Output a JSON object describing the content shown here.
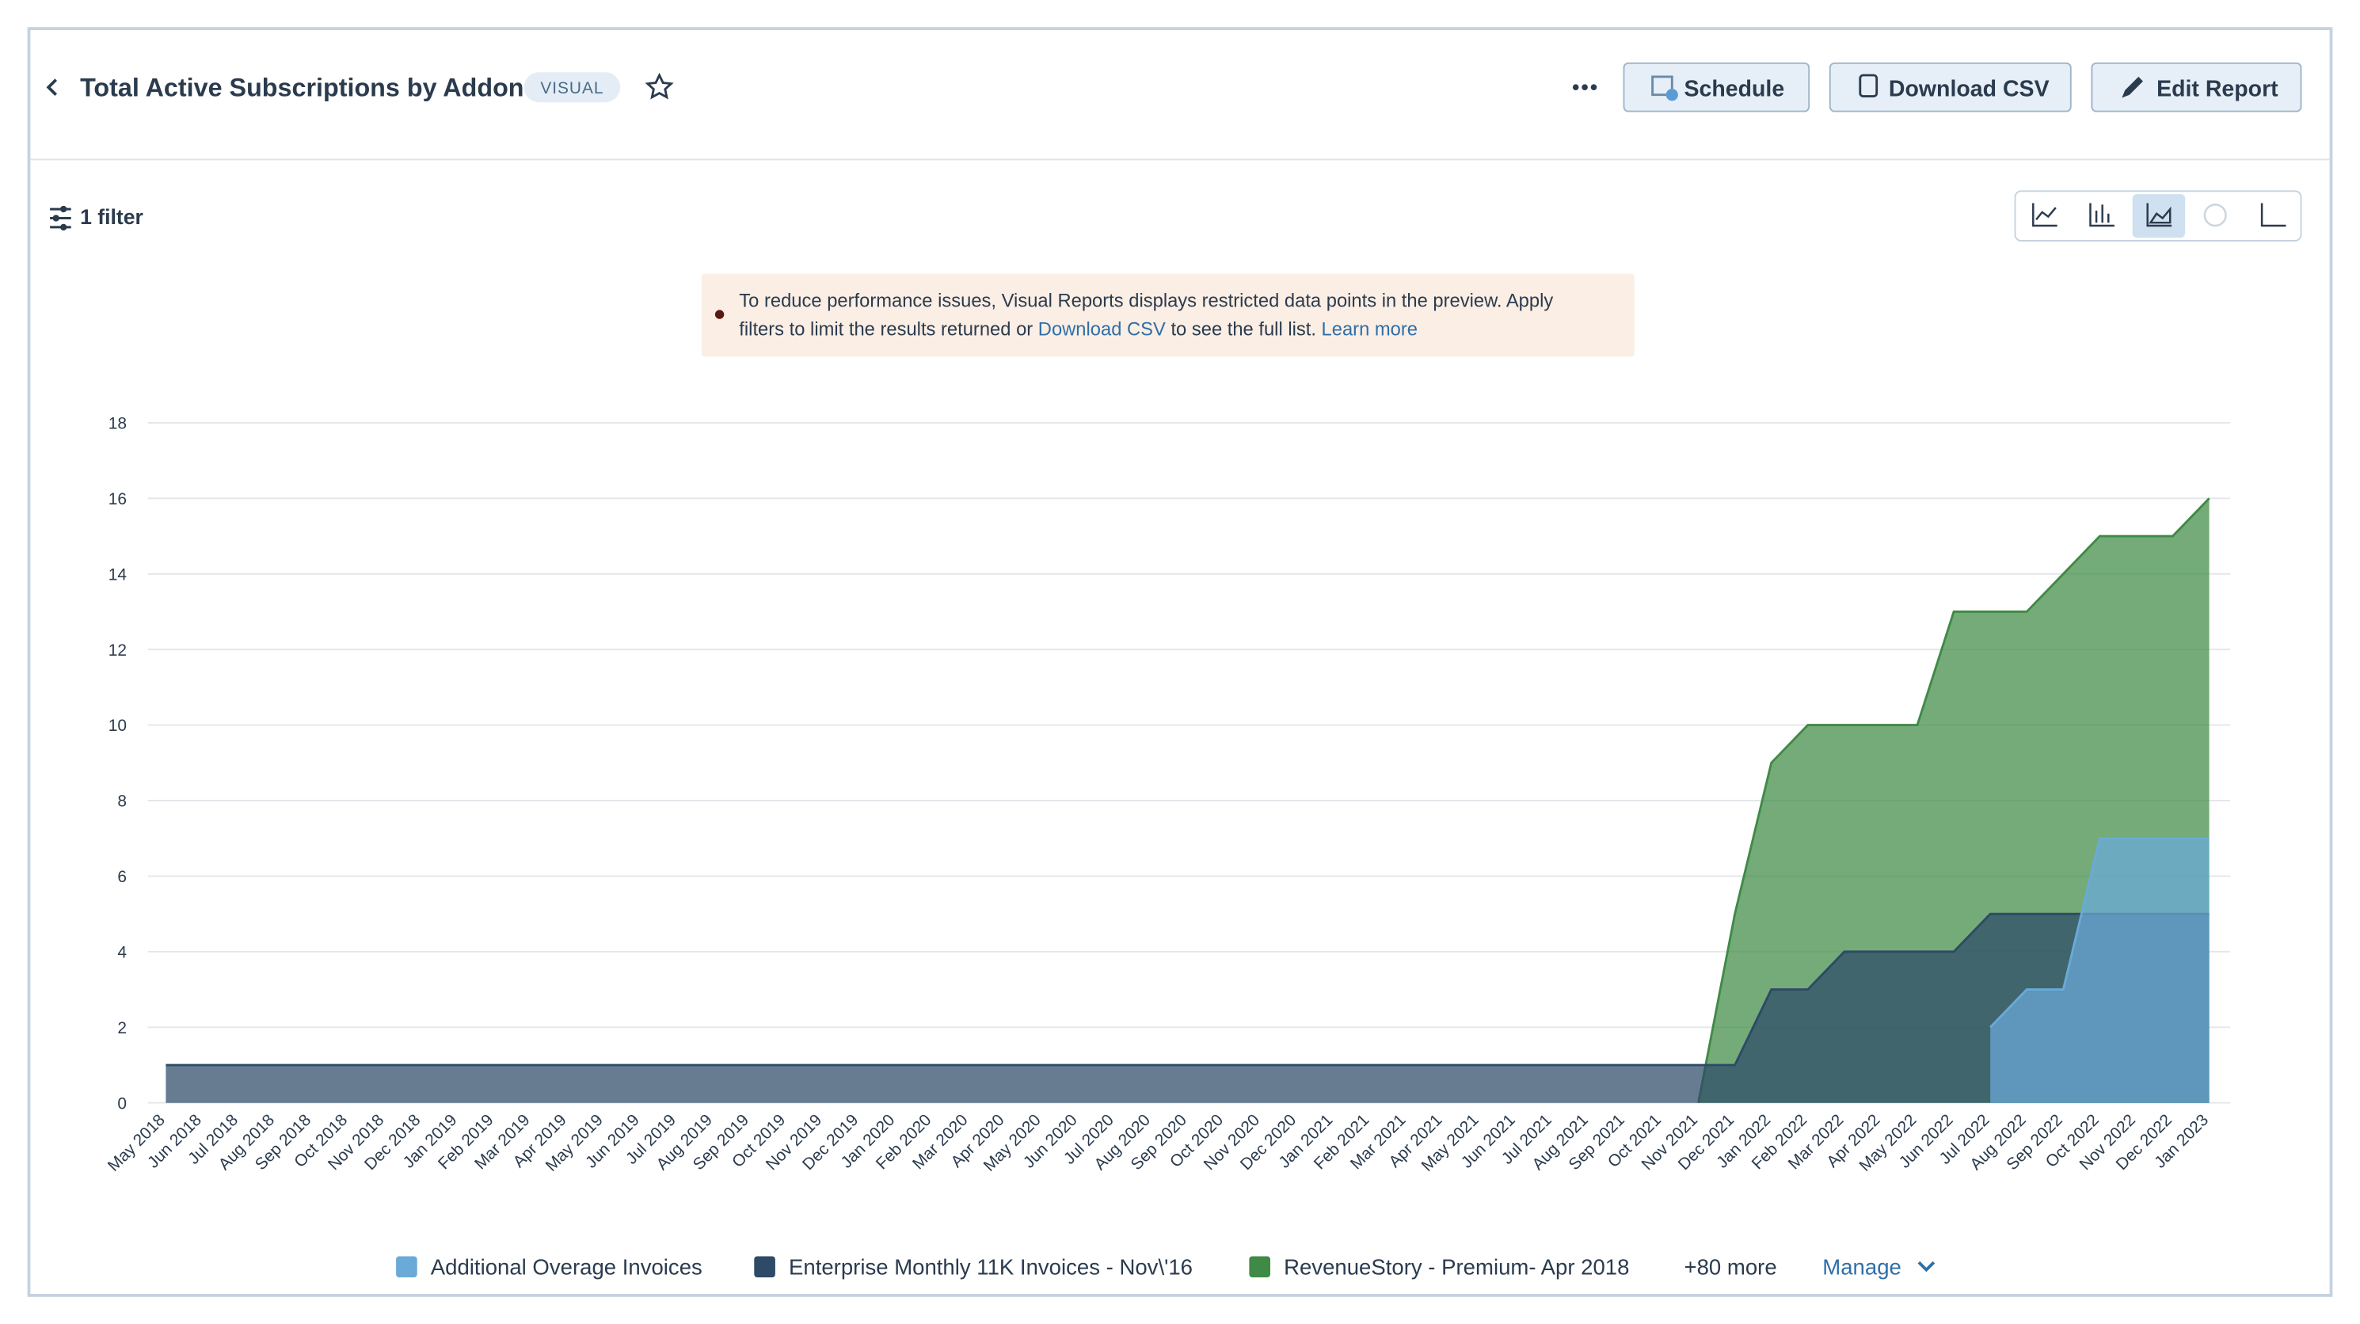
{
  "header": {
    "title": "Total Active Subscriptions by Addon",
    "badge": "VISUAL",
    "buttons": [
      "Schedule",
      "Download CSV",
      "Edit Report"
    ]
  },
  "filter": "1 filter",
  "banner": {
    "line1": "To reduce performance issues, Visual Reports displays restricted data points in the preview. Apply",
    "line2_start": "filters to limit the results returned or ",
    "link1": "Download CSV",
    "line2_mid": " to see the full list. ",
    "link2": "Learn more"
  },
  "legend_extra": {
    "more": "+80 more",
    "manage": "Manage"
  },
  "chart_data": {
    "type": "area",
    "categories": [
      "May 2018",
      "Jun 2018",
      "Jul 2018",
      "Aug 2018",
      "Sep 2018",
      "Oct 2018",
      "Nov 2018",
      "Dec 2018",
      "Jan 2019",
      "Feb 2019",
      "Mar 2019",
      "Apr 2019",
      "May 2019",
      "Jun 2019",
      "Jul 2019",
      "Aug 2019",
      "Sep 2019",
      "Oct 2019",
      "Nov 2019",
      "Dec 2019",
      "Jan 2020",
      "Feb 2020",
      "Mar 2020",
      "Apr 2020",
      "May 2020",
      "Jun 2020",
      "Jul 2020",
      "Aug 2020",
      "Sep 2020",
      "Oct 2020",
      "Nov 2020",
      "Dec 2020",
      "Jan 2021",
      "Feb 2021",
      "Mar 2021",
      "Apr 2021",
      "May 2021",
      "Jun 2021",
      "Jul 2021",
      "Aug 2021",
      "Sep 2021",
      "Oct 2021",
      "Nov 2021",
      "Dec 2021",
      "Jan 2022",
      "Feb 2022",
      "Mar 2022",
      "Apr 2022",
      "May 2022",
      "Jun 2022",
      "Jul 2022",
      "Aug 2022",
      "Sep 2022",
      "Oct 2022",
      "Nov 2022",
      "Dec 2022",
      "Jan 2023"
    ],
    "series": [
      {
        "name": "Additional Overage Invoices",
        "color": "#6aaad9",
        "values": [
          null,
          null,
          null,
          null,
          null,
          null,
          null,
          null,
          null,
          null,
          null,
          null,
          null,
          null,
          null,
          null,
          null,
          null,
          null,
          null,
          null,
          null,
          null,
          null,
          null,
          null,
          null,
          null,
          null,
          null,
          null,
          null,
          null,
          null,
          null,
          null,
          null,
          null,
          null,
          null,
          null,
          null,
          null,
          null,
          null,
          null,
          null,
          null,
          null,
          null,
          2,
          3,
          3,
          7,
          7,
          7,
          7
        ]
      },
      {
        "name": "Enterprise Monthly 11K Invoices - Nov\\'16",
        "color": "#2d4a66",
        "values": [
          1,
          1,
          1,
          1,
          1,
          1,
          1,
          1,
          1,
          1,
          1,
          1,
          1,
          1,
          1,
          1,
          1,
          1,
          1,
          1,
          1,
          1,
          1,
          1,
          1,
          1,
          1,
          1,
          1,
          1,
          1,
          1,
          1,
          1,
          1,
          1,
          1,
          1,
          1,
          1,
          1,
          1,
          1,
          1,
          3,
          3,
          4,
          4,
          4,
          4,
          5,
          5,
          5,
          5,
          5,
          5,
          5
        ]
      },
      {
        "name": "RevenueStory - Premium- Apr 2018",
        "color": "#3f8a45",
        "values": [
          null,
          null,
          null,
          null,
          null,
          null,
          null,
          null,
          null,
          null,
          null,
          null,
          null,
          null,
          null,
          null,
          null,
          null,
          null,
          null,
          null,
          null,
          null,
          null,
          null,
          null,
          null,
          null,
          null,
          null,
          null,
          null,
          null,
          null,
          null,
          null,
          null,
          null,
          null,
          null,
          null,
          null,
          0,
          5,
          9,
          10,
          10,
          10,
          10,
          13,
          13,
          13,
          14,
          15,
          15,
          15,
          16
        ]
      }
    ],
    "ylim": [
      0,
      18
    ],
    "yticks": [
      0,
      2,
      4,
      6,
      8,
      10,
      12,
      14,
      16,
      18
    ],
    "grid": true
  }
}
